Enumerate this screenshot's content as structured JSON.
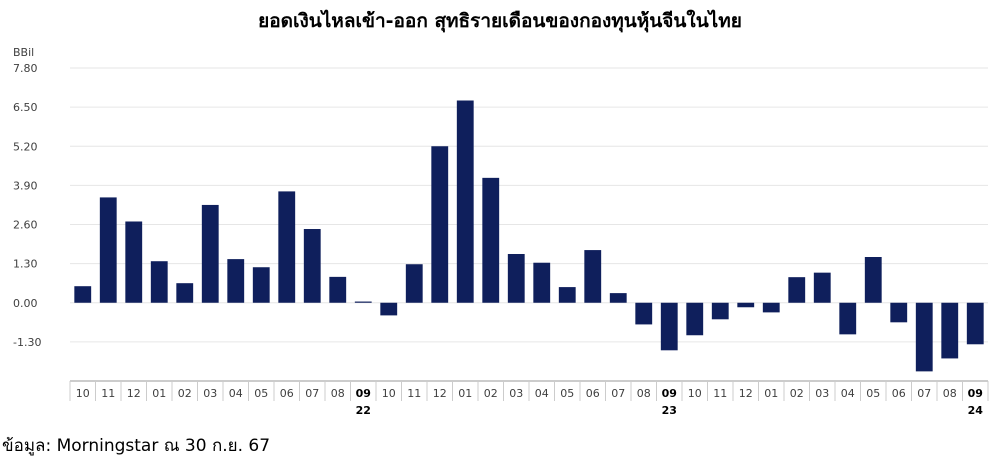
{
  "title": "ยอดเงินไหลเข้า-ออก สุทธิรายเดือนของกองทุนหุ้นจีนในไทย",
  "source": "ข้อมูล: Morningstar ณ 30 ก.ย. 67",
  "colors": {
    "bar": "#0f1f5c",
    "grid": "#e6e6e6",
    "axis": "#999999",
    "text": "#404040"
  },
  "chart_data": {
    "type": "bar",
    "unit_label": "BBil",
    "yticks": [
      "7.80",
      "6.50",
      "5.20",
      "3.90",
      "2.60",
      "1.30",
      "0.00",
      "-1.30"
    ],
    "ylim": [
      -2.6,
      7.8
    ],
    "grid": true,
    "categories": [
      "10",
      "11",
      "12",
      "01",
      "02",
      "03",
      "04",
      "05",
      "06",
      "07",
      "08",
      "09",
      "10",
      "11",
      "12",
      "01",
      "02",
      "03",
      "04",
      "05",
      "06",
      "07",
      "08",
      "09",
      "10",
      "11",
      "12",
      "01",
      "02",
      "03",
      "04",
      "05",
      "06",
      "07",
      "08",
      "09"
    ],
    "year_labels": [
      {
        "index": 11,
        "label": "22"
      },
      {
        "index": 23,
        "label": "23"
      },
      {
        "index": 35,
        "label": "24"
      }
    ],
    "values": [
      0.55,
      3.5,
      2.7,
      1.38,
      0.65,
      3.25,
      1.45,
      1.18,
      3.7,
      2.45,
      0.86,
      0.04,
      -0.42,
      1.28,
      5.2,
      6.72,
      4.15,
      1.62,
      1.33,
      0.52,
      1.75,
      0.32,
      -0.72,
      -1.58,
      -1.08,
      -0.55,
      -0.15,
      -0.32,
      0.85,
      1.0,
      -1.05,
      1.52,
      -0.65,
      -2.28,
      -1.85,
      -1.38
    ]
  }
}
